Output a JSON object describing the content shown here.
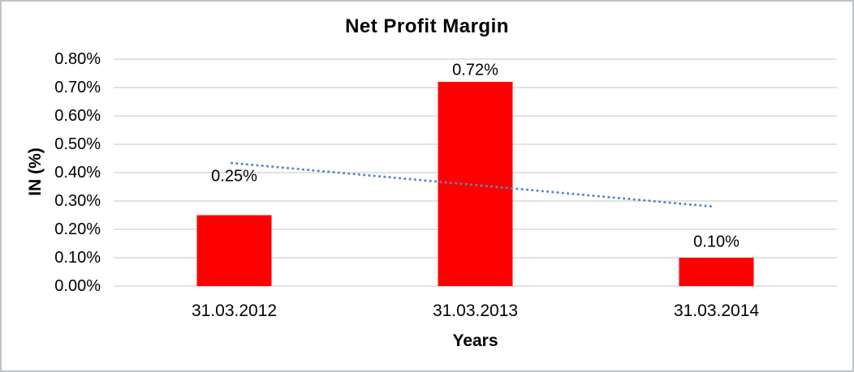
{
  "chart_data": {
    "type": "bar",
    "title": "Net Profit Margin",
    "xlabel": "Years",
    "ylabel": "IN (%)",
    "categories": [
      "31.03.2012",
      "31.03.2013",
      "31.03.2014"
    ],
    "values": [
      0.25,
      0.72,
      0.1
    ],
    "data_labels": [
      "0.25%",
      "0.72%",
      "0.10%"
    ],
    "y_ticks": [
      "0.00%",
      "0.10%",
      "0.20%",
      "0.30%",
      "0.40%",
      "0.50%",
      "0.60%",
      "0.70%",
      "0.80%"
    ],
    "ylim": [
      0,
      0.8
    ],
    "grid": true,
    "legend": "none",
    "bar_color": "#ff0000",
    "gridline_color": "#d9d9d9",
    "trendline": {
      "style": "dotted",
      "color": "#5588c7",
      "start_category_index": 0,
      "start_value": 0.434,
      "end_category_index": 2,
      "end_value": 0.28
    }
  }
}
